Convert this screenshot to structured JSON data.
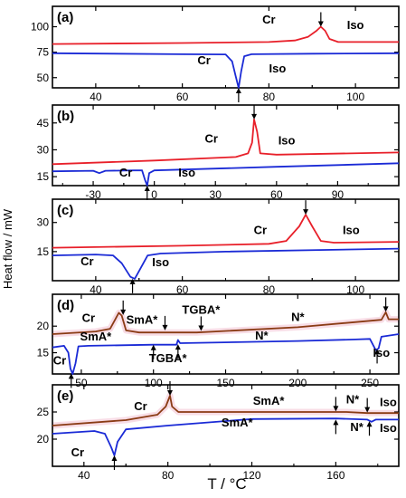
{
  "colors": {
    "red": "#e8202a",
    "blue": "#1a2ad6",
    "brown": "#8a3b14",
    "pink_band": "#f4c6d6",
    "axis": "#000000"
  },
  "figure": {
    "x_axis_label": "T / °C",
    "y_axis_label": "Heat flow / mW"
  },
  "chart_data": [
    {
      "type": "line",
      "panel": "(a)",
      "xlim": [
        30,
        110
      ],
      "ylim": [
        40,
        120
      ],
      "xticks": [
        40,
        60,
        80,
        100
      ],
      "xtick_labels": [
        "40",
        "60",
        "80",
        "100"
      ],
      "yticks": [
        50,
        75,
        100
      ],
      "ytick_labels": [
        "50",
        "75",
        "100"
      ],
      "series": [
        {
          "color": "red",
          "points": [
            [
              30,
              83
            ],
            [
              60,
              84
            ],
            [
              80,
              85
            ],
            [
              86,
              86.5
            ],
            [
              89,
              90
            ],
            [
              91,
              96
            ],
            [
              92,
              100
            ],
            [
              93,
              96
            ],
            [
              94,
              88
            ],
            [
              96,
              85
            ],
            [
              110,
              85
            ]
          ]
        },
        {
          "color": "blue",
          "points": [
            [
              30,
              74
            ],
            [
              60,
              73
            ],
            [
              70,
              72.8
            ],
            [
              71.5,
              66
            ],
            [
              72.3,
              52
            ],
            [
              73,
              40
            ],
            [
              73.6,
              56
            ],
            [
              74.3,
              71
            ],
            [
              76,
              73
            ],
            [
              90,
              73.5
            ],
            [
              110,
              74
            ]
          ]
        }
      ],
      "annotations": [
        {
          "text": "Cr",
          "x": 80,
          "y": 103
        },
        {
          "text": "Iso",
          "x": 100,
          "y": 98
        },
        {
          "text": "Cr",
          "x": 65,
          "y": 63
        },
        {
          "text": "Iso",
          "x": 82,
          "y": 55
        }
      ],
      "arrows": [
        {
          "x": 92,
          "y": 100,
          "dir": "down"
        },
        {
          "x": 73,
          "y": 40,
          "dir": "up"
        }
      ]
    },
    {
      "type": "line",
      "panel": "(b)",
      "xlim": [
        -50,
        120
      ],
      "ylim": [
        10,
        55
      ],
      "xticks": [
        -30,
        0,
        30,
        60,
        90
      ],
      "xtick_labels": [
        "-30",
        "0",
        "30",
        "60",
        "90"
      ],
      "yticks": [
        15,
        30,
        45
      ],
      "ytick_labels": [
        "15",
        "30",
        "45"
      ],
      "series": [
        {
          "color": "red",
          "points": [
            [
              -50,
              22
            ],
            [
              0,
              24
            ],
            [
              40,
              26
            ],
            [
              46,
              28
            ],
            [
              48,
              34
            ],
            [
              49,
              47
            ],
            [
              50.5,
              40
            ],
            [
              52,
              28
            ],
            [
              60,
              27.3
            ],
            [
              120,
              28.5
            ]
          ]
        },
        {
          "color": "blue",
          "points": [
            [
              -50,
              18
            ],
            [
              -30,
              18.3
            ],
            [
              -27,
              17
            ],
            [
              -24,
              18.3
            ],
            [
              -10,
              18.5
            ],
            [
              -6,
              18.5
            ],
            [
              -4.5,
              13
            ],
            [
              -3.5,
              10
            ],
            [
              -2.5,
              17
            ],
            [
              0,
              18.5
            ],
            [
              30,
              19.5
            ],
            [
              60,
              20.5
            ],
            [
              90,
              21.5
            ],
            [
              120,
              22.5
            ]
          ]
        }
      ],
      "annotations": [
        {
          "text": "Cr",
          "x": 28,
          "y": 34
        },
        {
          "text": "Iso",
          "x": 65,
          "y": 33
        },
        {
          "text": "Cr",
          "x": -14,
          "y": 15
        },
        {
          "text": "Iso",
          "x": 16,
          "y": 15
        }
      ],
      "arrows": [
        {
          "x": 49,
          "y": 47,
          "dir": "down"
        },
        {
          "x": -3.5,
          "y": 10,
          "dir": "up"
        }
      ]
    },
    {
      "type": "line",
      "panel": "(c)",
      "xlim": [
        30,
        110
      ],
      "ylim": [
        0,
        42
      ],
      "xticks": [
        40,
        60,
        80,
        100
      ],
      "xtick_labels": [
        "40",
        "60",
        "80",
        "100"
      ],
      "yticks": [
        15,
        30
      ],
      "ytick_labels": [
        "15",
        "30"
      ],
      "series": [
        {
          "color": "red",
          "points": [
            [
              30,
              17
            ],
            [
              60,
              18
            ],
            [
              80,
              19
            ],
            [
              84,
              20.5
            ],
            [
              87,
              28
            ],
            [
              88.5,
              34
            ],
            [
              90,
              28
            ],
            [
              92,
              20.5
            ],
            [
              95,
              19.6
            ],
            [
              110,
              20
            ]
          ]
        },
        {
          "color": "blue",
          "points": [
            [
              30,
              13
            ],
            [
              40,
              13.5
            ],
            [
              44,
              13
            ],
            [
              46,
              9
            ],
            [
              48,
              2
            ],
            [
              49,
              1
            ],
            [
              50,
              5
            ],
            [
              52,
              13
            ],
            [
              55,
              14
            ],
            [
              70,
              15
            ],
            [
              110,
              16.5
            ]
          ]
        }
      ],
      "annotations": [
        {
          "text": "Cr",
          "x": 78,
          "y": 24
        },
        {
          "text": "Iso",
          "x": 99,
          "y": 24
        },
        {
          "text": "Cr",
          "x": 38,
          "y": 8
        },
        {
          "text": "Iso",
          "x": 55,
          "y": 7.5
        }
      ],
      "arrows": [
        {
          "x": 88.5,
          "y": 34,
          "dir": "down"
        },
        {
          "x": 48.5,
          "y": 1,
          "dir": "up"
        }
      ]
    },
    {
      "type": "line",
      "panel": "(d)",
      "xlim": [
        30,
        270
      ],
      "ylim": [
        11,
        26
      ],
      "xticks": [
        50,
        100,
        150,
        200,
        250
      ],
      "xtick_labels": [
        "50",
        "100",
        "150",
        "200",
        "250"
      ],
      "yticks": [
        15,
        20
      ],
      "ytick_labels": [
        "15",
        "20"
      ],
      "series": [
        {
          "color": "brown",
          "points": [
            [
              30,
              18.5
            ],
            [
              60,
              19
            ],
            [
              70,
              19.5
            ],
            [
              76,
              22.5
            ],
            [
              78,
              22
            ],
            [
              81,
              19.2
            ],
            [
              90,
              18.8
            ],
            [
              130,
              18.8
            ],
            [
              200,
              19.8
            ],
            [
              250,
              21
            ],
            [
              258,
              21.2
            ],
            [
              261,
              22.6
            ],
            [
              263,
              21.3
            ],
            [
              270,
              21.3
            ]
          ]
        },
        {
          "color": "blue",
          "points": [
            [
              30,
              16
            ],
            [
              38,
              16.3
            ],
            [
              41,
              15
            ],
            [
              42.5,
              12
            ],
            [
              44,
              11
            ],
            [
              46,
              13
            ],
            [
              48,
              16.2
            ],
            [
              55,
              16.3
            ],
            [
              100,
              16.5
            ],
            [
              116,
              16.5
            ],
            [
              117,
              17.4
            ],
            [
              118.5,
              16.8
            ],
            [
              200,
              17.2
            ],
            [
              240,
              17.5
            ],
            [
              250,
              17.6
            ],
            [
              254,
              15.5
            ],
            [
              256,
              15.8
            ],
            [
              258,
              18
            ],
            [
              270,
              18.5
            ]
          ]
        }
      ],
      "annotations": [
        {
          "text": "Cr",
          "x": 55,
          "y": 20.8
        },
        {
          "text": "SmA*",
          "x": 92,
          "y": 20.5
        },
        {
          "text": "TGBA*",
          "x": 133,
          "y": 22.3
        },
        {
          "text": "N*",
          "x": 200,
          "y": 21
        },
        {
          "text": "SmA*",
          "x": 60,
          "y": 17.3
        },
        {
          "text": "TGBA*",
          "x": 110,
          "y": 13.2
        },
        {
          "text": "N*",
          "x": 175,
          "y": 17.5
        },
        {
          "text": "Cr",
          "x": 35,
          "y": 12.8
        },
        {
          "text": "Iso",
          "x": 258,
          "y": 14.2
        }
      ],
      "arrows": [
        {
          "x": 79,
          "y": 22.1,
          "dir": "down"
        },
        {
          "x": 108,
          "y": 19.2,
          "dir": "down"
        },
        {
          "x": 133,
          "y": 19.1,
          "dir": "down"
        },
        {
          "x": 261,
          "y": 22.7,
          "dir": "down"
        },
        {
          "x": 100,
          "y": 16.5,
          "dir": "up"
        },
        {
          "x": 117,
          "y": 16.6,
          "dir": "up"
        },
        {
          "x": 255,
          "y": 15.7,
          "dir": "up"
        },
        {
          "x": 43,
          "y": 11.1,
          "dir": "up"
        }
      ]
    },
    {
      "type": "line",
      "panel": "(e)",
      "xlim": [
        25,
        190
      ],
      "ylim": [
        15,
        30
      ],
      "xticks": [
        40,
        80,
        120,
        160
      ],
      "xtick_labels": [
        "40",
        "80",
        "120",
        "160"
      ],
      "yticks": [
        20,
        25
      ],
      "ytick_labels": [
        "20",
        "25"
      ],
      "series": [
        {
          "color": "brown",
          "points": [
            [
              25,
              22.5
            ],
            [
              60,
              23.5
            ],
            [
              75,
              24.5
            ],
            [
              79,
              26
            ],
            [
              81,
              28
            ],
            [
              82,
              26
            ],
            [
              85,
              25
            ],
            [
              120,
              25
            ],
            [
              160,
              25
            ],
            [
              165,
              25
            ],
            [
              175,
              24.8
            ],
            [
              190,
              24.8
            ]
          ]
        },
        {
          "color": "blue",
          "points": [
            [
              25,
              21
            ],
            [
              45,
              21.5
            ],
            [
              50,
              21
            ],
            [
              53,
              18.5
            ],
            [
              54.5,
              17
            ],
            [
              56,
              19.5
            ],
            [
              60,
              21.8
            ],
            [
              80,
              22.5
            ],
            [
              120,
              23.7
            ],
            [
              160,
              23.8
            ],
            [
              175,
              23.6
            ],
            [
              177,
              23.2
            ],
            [
              179,
              23.6
            ],
            [
              190,
              23.6
            ]
          ]
        }
      ],
      "annotations": [
        {
          "text": "Cr",
          "x": 67,
          "y": 25.3
        },
        {
          "text": "SmA*",
          "x": 128,
          "y": 26.3
        },
        {
          "text": "N*",
          "x": 168,
          "y": 26.6
        },
        {
          "text": "Iso",
          "x": 185,
          "y": 26.1
        },
        {
          "text": "SmA*",
          "x": 113,
          "y": 22.3
        },
        {
          "text": "N*",
          "x": 170,
          "y": 21.5
        },
        {
          "text": "Iso",
          "x": 185,
          "y": 21.3
        },
        {
          "text": "Cr",
          "x": 37,
          "y": 16.8
        }
      ],
      "arrows": [
        {
          "x": 81,
          "y": 28,
          "dir": "down"
        },
        {
          "x": 160,
          "y": 25.1,
          "dir": "down"
        },
        {
          "x": 175,
          "y": 24.9,
          "dir": "down"
        },
        {
          "x": 160,
          "y": 23.6,
          "dir": "up"
        },
        {
          "x": 176,
          "y": 23.3,
          "dir": "up"
        },
        {
          "x": 54.5,
          "y": 17,
          "dir": "up"
        }
      ]
    }
  ]
}
